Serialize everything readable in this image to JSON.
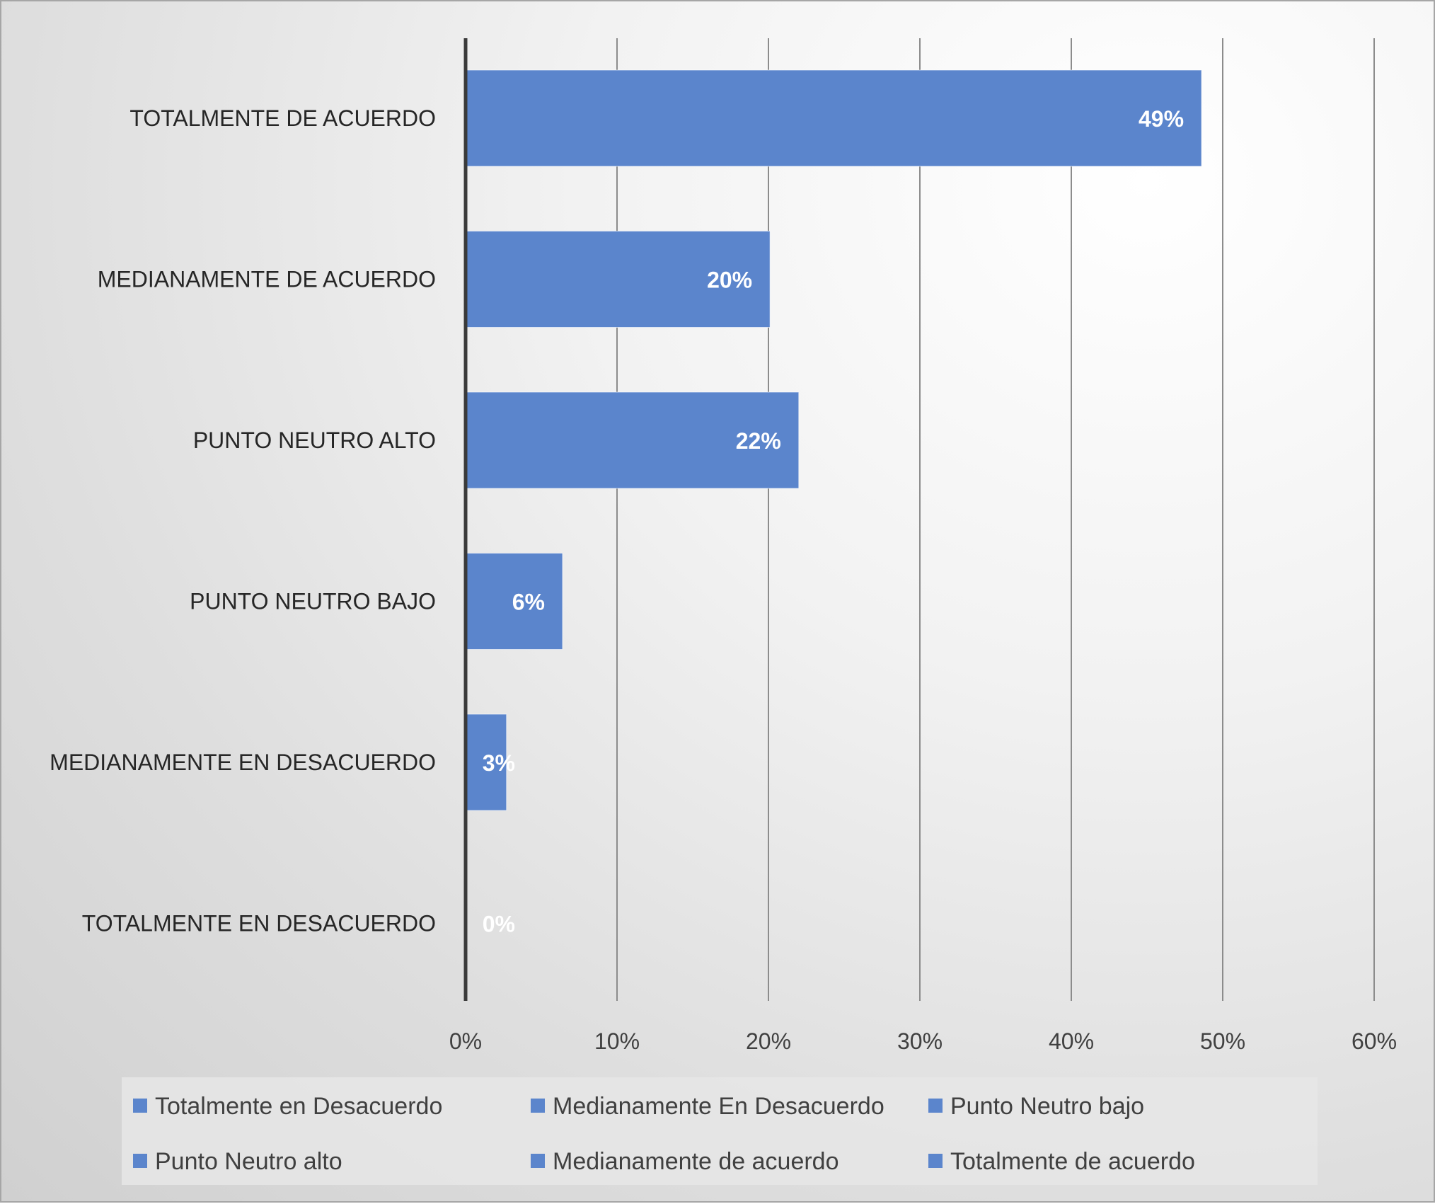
{
  "chart_data": {
    "type": "bar",
    "orientation": "horizontal",
    "categories": [
      "TOTALMENTE DE  ACUERDO",
      "MEDIANAMENTE DE ACUERDO",
      "PUNTO NEUTRO ALTO",
      "PUNTO NEUTRO BAJO",
      "MEDIANAMENTE EN DESACUERDO",
      "TOTALMENTE EN DESACUERDO"
    ],
    "values": [
      48.6,
      20.1,
      22.0,
      6.4,
      2.7,
      0
    ],
    "data_labels": [
      "49%",
      "20%",
      "22%",
      "6%",
      "3%",
      "0%"
    ],
    "xlim": [
      0,
      60
    ],
    "x_ticks": [
      {
        "value": 0,
        "label": "0%"
      },
      {
        "value": 10,
        "label": "10%"
      },
      {
        "value": 20,
        "label": "20%"
      },
      {
        "value": 30,
        "label": "30%"
      },
      {
        "value": 40,
        "label": "40%"
      },
      {
        "value": 50,
        "label": "50%"
      },
      {
        "value": 60,
        "label": "60%"
      }
    ],
    "title": "",
    "xlabel": "",
    "ylabel": "",
    "grid": "vertical",
    "bar_color": "#5b85cc",
    "legend": {
      "placement": "bottom",
      "entries": [
        "Totalmente en Desacuerdo",
        "Medianamente En Desacuerdo",
        "Punto Neutro bajo",
        "Punto Neutro alto",
        "Medianamente de acuerdo",
        "Totalmente de  acuerdo"
      ]
    }
  }
}
